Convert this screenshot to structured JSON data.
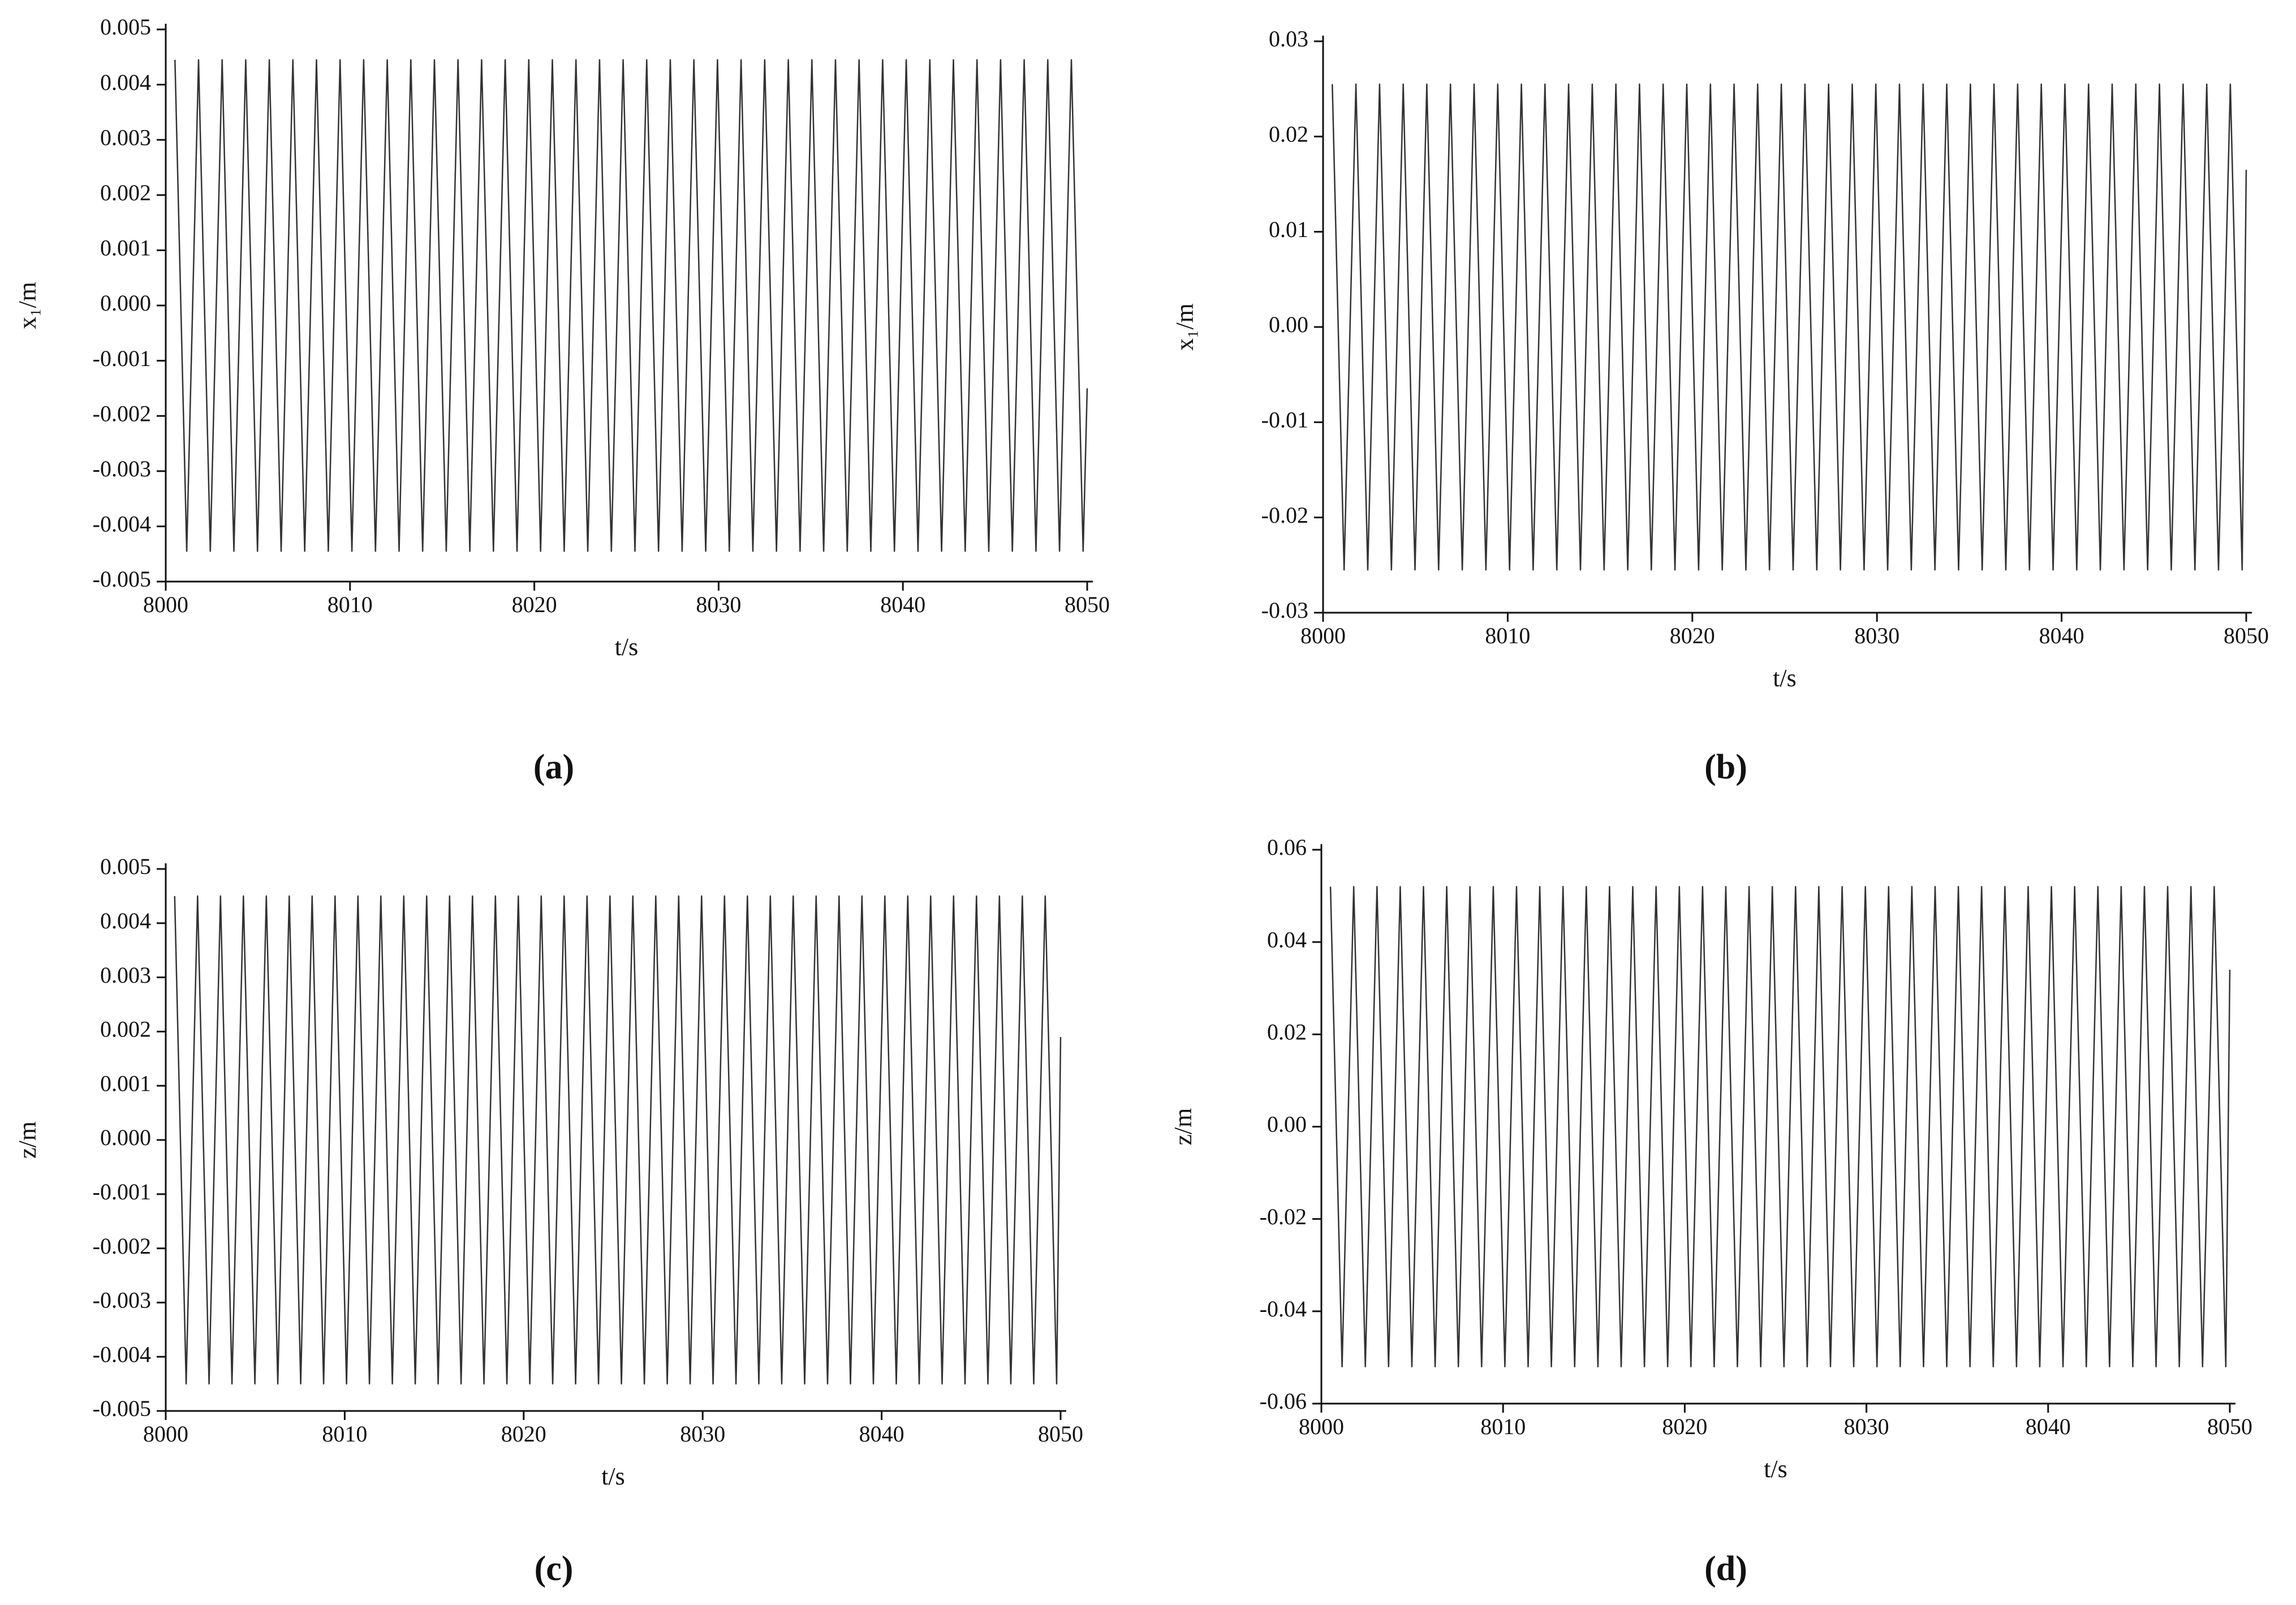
{
  "chart_data": [
    {
      "type": "line",
      "caption": "(a)",
      "x_label": "t/s",
      "y_label": "x₁/m",
      "x": [
        8000.5,
        8001.14,
        8001.78,
        8002.42,
        8003.06,
        8003.7,
        8004.34,
        8004.98,
        8005.62,
        8006.26,
        8006.9,
        8007.54,
        8008.18,
        8008.82,
        8009.46,
        8010.1,
        8010.74,
        8011.38,
        8012.02,
        8012.66,
        8013.3,
        8013.94,
        8014.58,
        8015.22,
        8015.86,
        8016.5,
        8017.14,
        8017.78,
        8018.42,
        8019.06,
        8019.7,
        8020.34,
        8020.98,
        8021.62,
        8022.26,
        8022.9,
        8023.54,
        8024.18,
        8024.82,
        8025.46,
        8026.1,
        8026.74,
        8027.38,
        8028.02,
        8028.66,
        8029.3,
        8029.94,
        8030.58,
        8031.22,
        8031.86,
        8032.5,
        8033.14,
        8033.78,
        8034.42,
        8035.06,
        8035.7,
        8036.34,
        8036.98,
        8037.62,
        8038.26,
        8038.9,
        8039.54,
        8040.18,
        8040.82,
        8041.46,
        8042.1,
        8042.74,
        8043.38,
        8044.02,
        8044.66,
        8045.3,
        8045.94,
        8046.58,
        8047.22,
        8047.86,
        8048.5,
        8049.14,
        8049.78,
        8050
      ],
      "values": [
        0.00445,
        -0.00445,
        0.00445,
        -0.00445,
        0.00445,
        -0.00445,
        0.00445,
        -0.00445,
        0.00445,
        -0.00445,
        0.00445,
        -0.00445,
        0.00445,
        -0.00445,
        0.00445,
        -0.00445,
        0.00445,
        -0.00445,
        0.00445,
        -0.00445,
        0.00445,
        -0.00445,
        0.00445,
        -0.00445,
        0.00445,
        -0.00445,
        0.00445,
        -0.00445,
        0.00445,
        -0.00445,
        0.00445,
        -0.00445,
        0.00445,
        -0.00445,
        0.00445,
        -0.00445,
        0.00445,
        -0.00445,
        0.00445,
        -0.00445,
        0.00445,
        -0.00445,
        0.00445,
        -0.00445,
        0.00445,
        -0.00445,
        0.00445,
        -0.00445,
        0.00445,
        -0.00445,
        0.00445,
        -0.00445,
        0.00445,
        -0.00445,
        0.00445,
        -0.00445,
        0.00445,
        -0.00445,
        0.00445,
        -0.00445,
        0.00445,
        -0.00445,
        0.00445,
        -0.00445,
        0.00445,
        -0.00445,
        0.00445,
        -0.00445,
        0.00445,
        -0.00445,
        0.00445,
        -0.00445,
        0.00445,
        -0.00445,
        0.00445,
        -0.00445,
        0.00445,
        -0.00445,
        -0.0015
      ],
      "color": "#333333",
      "xlim": [
        8000,
        8050
      ],
      "ylim": [
        -0.005,
        0.005
      ],
      "xticks": [
        8000,
        8010,
        8020,
        8030,
        8040,
        8050
      ],
      "yticks": [
        0.005,
        0.004,
        0.003,
        0.002,
        0.001,
        {
          "value": 0,
          "label": "0.000"
        },
        -0.001,
        -0.002,
        -0.003,
        -0.004,
        -0.005
      ]
    },
    {
      "type": "line",
      "caption": "(b)",
      "x_label": "t/s",
      "y_label": "x₁/m",
      "x": [
        8000.5,
        8001.14,
        8001.78,
        8002.42,
        8003.06,
        8003.7,
        8004.34,
        8004.98,
        8005.62,
        8006.26,
        8006.9,
        8007.54,
        8008.18,
        8008.82,
        8009.46,
        8010.1,
        8010.74,
        8011.38,
        8012.02,
        8012.66,
        8013.3,
        8013.94,
        8014.58,
        8015.22,
        8015.86,
        8016.5,
        8017.14,
        8017.78,
        8018.42,
        8019.06,
        8019.7,
        8020.34,
        8020.98,
        8021.62,
        8022.26,
        8022.9,
        8023.54,
        8024.18,
        8024.82,
        8025.46,
        8026.1,
        8026.74,
        8027.38,
        8028.02,
        8028.66,
        8029.3,
        8029.94,
        8030.58,
        8031.22,
        8031.86,
        8032.5,
        8033.14,
        8033.78,
        8034.42,
        8035.06,
        8035.7,
        8036.34,
        8036.98,
        8037.62,
        8038.26,
        8038.9,
        8039.54,
        8040.18,
        8040.82,
        8041.46,
        8042.1,
        8042.74,
        8043.38,
        8044.02,
        8044.66,
        8045.3,
        8045.94,
        8046.58,
        8047.22,
        8047.86,
        8048.5,
        8049.14,
        8049.78,
        8050
      ],
      "values": [
        0.0255,
        -0.0255,
        0.0255,
        -0.0255,
        0.0255,
        -0.0255,
        0.0255,
        -0.0255,
        0.0255,
        -0.0255,
        0.0255,
        -0.0255,
        0.0255,
        -0.0255,
        0.0255,
        -0.0255,
        0.0255,
        -0.0255,
        0.0255,
        -0.0255,
        0.0255,
        -0.0255,
        0.0255,
        -0.0255,
        0.0255,
        -0.0255,
        0.0255,
        -0.0255,
        0.0255,
        -0.0255,
        0.0255,
        -0.0255,
        0.0255,
        -0.0255,
        0.0255,
        -0.0255,
        0.0255,
        -0.0255,
        0.0255,
        -0.0255,
        0.0255,
        -0.0255,
        0.0255,
        -0.0255,
        0.0255,
        -0.0255,
        0.0255,
        -0.0255,
        0.0255,
        -0.0255,
        0.0255,
        -0.0255,
        0.0255,
        -0.0255,
        0.0255,
        -0.0255,
        0.0255,
        -0.0255,
        0.0255,
        -0.0255,
        0.0255,
        -0.0255,
        0.0255,
        -0.0255,
        0.0255,
        -0.0255,
        0.0255,
        -0.0255,
        0.0255,
        -0.0255,
        0.0255,
        -0.0255,
        0.0255,
        -0.0255,
        0.0255,
        -0.0255,
        0.0255,
        -0.0255,
        0.0165
      ],
      "color": "#333333",
      "xlim": [
        8000,
        8050
      ],
      "ylim": [
        -0.03,
        0.03
      ],
      "xticks": [
        8000,
        8010,
        8020,
        8030,
        8040,
        8050
      ],
      "yticks": [
        0.03,
        0.02,
        0.01,
        {
          "value": 0,
          "label": "0.00"
        },
        -0.01,
        -0.02,
        -0.03
      ]
    },
    {
      "type": "line",
      "caption": "(c)",
      "x_label": "t/s",
      "y_label": "z/m",
      "x": [
        8000.5,
        8001.14,
        8001.78,
        8002.42,
        8003.06,
        8003.7,
        8004.34,
        8004.98,
        8005.62,
        8006.26,
        8006.9,
        8007.54,
        8008.18,
        8008.82,
        8009.46,
        8010.1,
        8010.74,
        8011.38,
        8012.02,
        8012.66,
        8013.3,
        8013.94,
        8014.58,
        8015.22,
        8015.86,
        8016.5,
        8017.14,
        8017.78,
        8018.42,
        8019.06,
        8019.7,
        8020.34,
        8020.98,
        8021.62,
        8022.26,
        8022.9,
        8023.54,
        8024.18,
        8024.82,
        8025.46,
        8026.1,
        8026.74,
        8027.38,
        8028.02,
        8028.66,
        8029.3,
        8029.94,
        8030.58,
        8031.22,
        8031.86,
        8032.5,
        8033.14,
        8033.78,
        8034.42,
        8035.06,
        8035.7,
        8036.34,
        8036.98,
        8037.62,
        8038.26,
        8038.9,
        8039.54,
        8040.18,
        8040.82,
        8041.46,
        8042.1,
        8042.74,
        8043.38,
        8044.02,
        8044.66,
        8045.3,
        8045.94,
        8046.58,
        8047.22,
        8047.86,
        8048.5,
        8049.14,
        8049.78,
        8050
      ],
      "values": [
        0.0045,
        -0.0045,
        0.0045,
        -0.0045,
        0.0045,
        -0.0045,
        0.0045,
        -0.0045,
        0.0045,
        -0.0045,
        0.0045,
        -0.0045,
        0.0045,
        -0.0045,
        0.0045,
        -0.0045,
        0.0045,
        -0.0045,
        0.0045,
        -0.0045,
        0.0045,
        -0.0045,
        0.0045,
        -0.0045,
        0.0045,
        -0.0045,
        0.0045,
        -0.0045,
        0.0045,
        -0.0045,
        0.0045,
        -0.0045,
        0.0045,
        -0.0045,
        0.0045,
        -0.0045,
        0.0045,
        -0.0045,
        0.0045,
        -0.0045,
        0.0045,
        -0.0045,
        0.0045,
        -0.0045,
        0.0045,
        -0.0045,
        0.0045,
        -0.0045,
        0.0045,
        -0.0045,
        0.0045,
        -0.0045,
        0.0045,
        -0.0045,
        0.0045,
        -0.0045,
        0.0045,
        -0.0045,
        0.0045,
        -0.0045,
        0.0045,
        -0.0045,
        0.0045,
        -0.0045,
        0.0045,
        -0.0045,
        0.0045,
        -0.0045,
        0.0045,
        -0.0045,
        0.0045,
        -0.0045,
        0.0045,
        -0.0045,
        0.0045,
        -0.0045,
        0.0045,
        -0.0045,
        0.0019
      ],
      "color": "#333333",
      "xlim": [
        8000,
        8050
      ],
      "ylim": [
        -0.005,
        0.005
      ],
      "xticks": [
        8000,
        8010,
        8020,
        8030,
        8040,
        8050
      ],
      "yticks": [
        0.005,
        0.004,
        0.003,
        0.002,
        0.001,
        {
          "value": 0,
          "label": "0.000"
        },
        -0.001,
        -0.002,
        -0.003,
        -0.004,
        -0.005
      ]
    },
    {
      "type": "line",
      "caption": "(d)",
      "x_label": "t/s",
      "y_label": "z/m",
      "x": [
        8000.5,
        8001.14,
        8001.78,
        8002.42,
        8003.06,
        8003.7,
        8004.34,
        8004.98,
        8005.62,
        8006.26,
        8006.9,
        8007.54,
        8008.18,
        8008.82,
        8009.46,
        8010.1,
        8010.74,
        8011.38,
        8012.02,
        8012.66,
        8013.3,
        8013.94,
        8014.58,
        8015.22,
        8015.86,
        8016.5,
        8017.14,
        8017.78,
        8018.42,
        8019.06,
        8019.7,
        8020.34,
        8020.98,
        8021.62,
        8022.26,
        8022.9,
        8023.54,
        8024.18,
        8024.82,
        8025.46,
        8026.1,
        8026.74,
        8027.38,
        8028.02,
        8028.66,
        8029.3,
        8029.94,
        8030.58,
        8031.22,
        8031.86,
        8032.5,
        8033.14,
        8033.78,
        8034.42,
        8035.06,
        8035.7,
        8036.34,
        8036.98,
        8037.62,
        8038.26,
        8038.9,
        8039.54,
        8040.18,
        8040.82,
        8041.46,
        8042.1,
        8042.74,
        8043.38,
        8044.02,
        8044.66,
        8045.3,
        8045.94,
        8046.58,
        8047.22,
        8047.86,
        8048.5,
        8049.14,
        8049.78,
        8050
      ],
      "values": [
        0.052,
        -0.052,
        0.052,
        -0.052,
        0.052,
        -0.052,
        0.052,
        -0.052,
        0.052,
        -0.052,
        0.052,
        -0.052,
        0.052,
        -0.052,
        0.052,
        -0.052,
        0.052,
        -0.052,
        0.052,
        -0.052,
        0.052,
        -0.052,
        0.052,
        -0.052,
        0.052,
        -0.052,
        0.052,
        -0.052,
        0.052,
        -0.052,
        0.052,
        -0.052,
        0.052,
        -0.052,
        0.052,
        -0.052,
        0.052,
        -0.052,
        0.052,
        -0.052,
        0.052,
        -0.052,
        0.052,
        -0.052,
        0.052,
        -0.052,
        0.052,
        -0.052,
        0.052,
        -0.052,
        0.052,
        -0.052,
        0.052,
        -0.052,
        0.052,
        -0.052,
        0.052,
        -0.052,
        0.052,
        -0.052,
        0.052,
        -0.052,
        0.052,
        -0.052,
        0.052,
        -0.052,
        0.052,
        -0.052,
        0.052,
        -0.052,
        0.052,
        -0.052,
        0.052,
        -0.052,
        0.052,
        -0.052,
        0.052,
        -0.052,
        0.034
      ],
      "color": "#333333",
      "xlim": [
        8000,
        8050
      ],
      "ylim": [
        -0.06,
        0.06
      ],
      "xticks": [
        8000,
        8010,
        8020,
        8030,
        8040,
        8050
      ],
      "yticks": [
        0.06,
        0.04,
        0.02,
        {
          "value": 0,
          "label": "0.00"
        },
        -0.02,
        -0.04,
        -0.06
      ]
    }
  ]
}
